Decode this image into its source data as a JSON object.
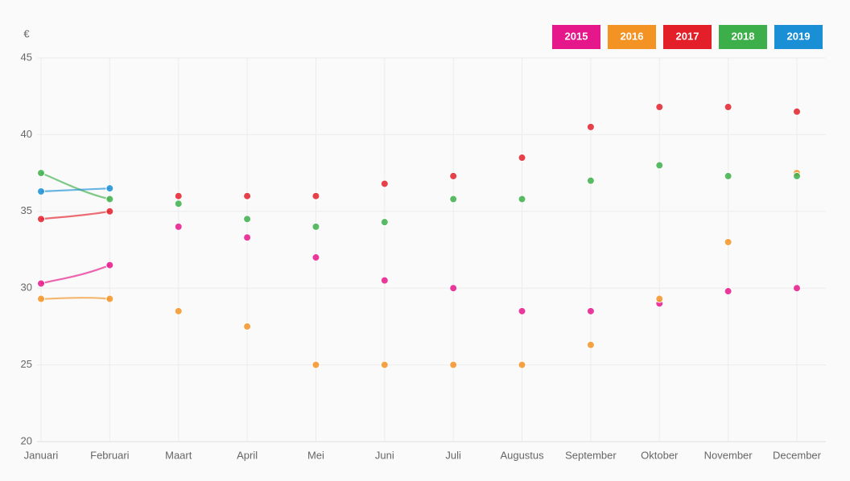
{
  "chart_data": {
    "type": "line",
    "ylabel": "€",
    "categories": [
      "Januari",
      "Februari",
      "Maart",
      "April",
      "Mei",
      "Juni",
      "Juli",
      "Augustus",
      "September",
      "Oktober",
      "November",
      "December"
    ],
    "series": [
      {
        "name": "2015",
        "color": "#e6168b",
        "values": [
          30.3,
          31.5,
          34.0,
          33.3,
          32.0,
          30.5,
          30.0,
          28.5,
          28.5,
          29.0,
          29.8,
          30.0
        ]
      },
      {
        "name": "2016",
        "color": "#f39323",
        "values": [
          29.3,
          29.3,
          28.5,
          27.5,
          25.0,
          25.0,
          25.0,
          25.0,
          26.3,
          29.3,
          33.0,
          37.5
        ]
      },
      {
        "name": "2017",
        "color": "#e3202a",
        "values": [
          34.5,
          35.0,
          36.0,
          36.0,
          36.0,
          36.8,
          37.3,
          38.5,
          40.5,
          41.8,
          41.8,
          41.5
        ]
      },
      {
        "name": "2018",
        "color": "#3daf4a",
        "values": [
          37.5,
          35.8,
          35.5,
          34.5,
          34.0,
          34.3,
          35.8,
          35.8,
          37.0,
          38.0,
          37.3,
          37.3
        ]
      },
      {
        "name": "2019",
        "color": "#1a8fd6",
        "values": [
          36.3,
          36.5,
          null,
          null,
          null,
          null,
          null,
          null,
          null,
          null,
          null,
          null
        ]
      }
    ],
    "ylim": [
      20,
      45
    ],
    "yticks": [
      20,
      25,
      30,
      35,
      40,
      45
    ],
    "grid": true,
    "legend": "top-right"
  }
}
